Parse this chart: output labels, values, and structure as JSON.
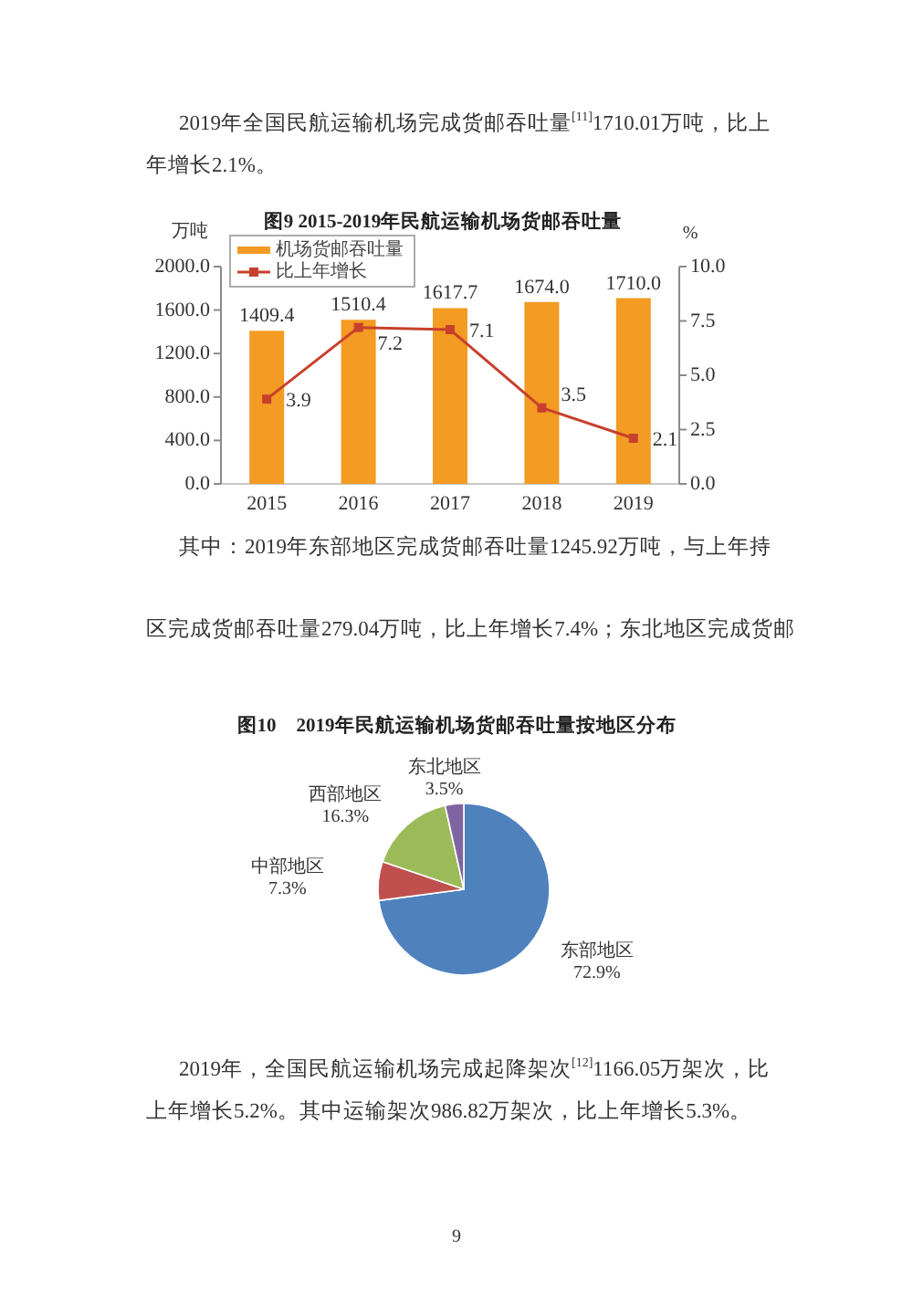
{
  "chart_data": [
    {
      "type": "bar",
      "title": "图9 2015-2019年民航运输机场货邮吞吐量",
      "ylabel": "万吨",
      "y2label": "%",
      "categories": [
        "2015",
        "2016",
        "2017",
        "2018",
        "2019"
      ],
      "series": [
        {
          "name": "机场货邮吞吐量",
          "type": "bar",
          "color": "#f39b22",
          "values": [
            1409.4,
            1510.4,
            1617.7,
            1674.0,
            1710.0
          ],
          "value_labels": [
            "1409.4",
            "1510.4",
            "1617.7",
            "1674.0",
            "1710.0"
          ]
        },
        {
          "name": "比上年增长",
          "type": "line",
          "axis": "y2",
          "color": "#c8402c",
          "marker": "square",
          "values": [
            3.9,
            7.2,
            7.1,
            3.5,
            2.1
          ],
          "value_labels": [
            "3.9",
            "7.2",
            "7.1",
            "3.5",
            "2.1"
          ]
        }
      ],
      "ylim": [
        0,
        2000
      ],
      "yticks": [
        {
          "value": 0,
          "label": "0.0"
        },
        {
          "value": 400,
          "label": "400.0"
        },
        {
          "value": 800,
          "label": "800.0"
        },
        {
          "value": 1200,
          "label": "1200.0"
        },
        {
          "value": 1600,
          "label": "1600.0"
        },
        {
          "value": 2000,
          "label": "2000.0"
        }
      ],
      "y2lim": [
        0,
        10
      ],
      "y2ticks": [
        {
          "value": 0,
          "label": "0.0"
        },
        2.5,
        {
          "value": 5,
          "label": "5.0"
        },
        7.5,
        {
          "value": 10,
          "label": "10.0"
        }
      ],
      "legend": "top left",
      "annotations": [
        "2019年全国民航运输机场完成货邮吞吐量$^{[11]}$1710.01万吨，比上年增长2.1%。",
        "其中：2019年东部地区完成货邮吞吐量1245.92万吨，与上年持",
        "区完成货邮吞吐量279.04万吨，比上年增长7.4%；东北地区完成货邮"
      ]
    },
    {
      "type": "pie",
      "title": "图10　2019年民航运输机场货邮吞吐量按地区分布",
      "categories": [
        "东部地区",
        "中部地区",
        "西部地区",
        "东北地区"
      ],
      "values": [
        72.9,
        7.3,
        16.3,
        3.5
      ],
      "colors": [
        "#4f81bd",
        "#c0504d",
        "#9bbb59",
        "#8064a2"
      ],
      "value_labels": [
        "72.9%",
        "7.3%",
        "16.3%",
        "3.5%"
      ],
      "annotations": [
        "2019年，全国民航运输机场完成起降架次$^{[12]}$1166.05万架次，比上年增长5.2%。其中运输架次986.82万架次，比上年增长5.3%。",
        "9"
      ]
    }
  ]
}
